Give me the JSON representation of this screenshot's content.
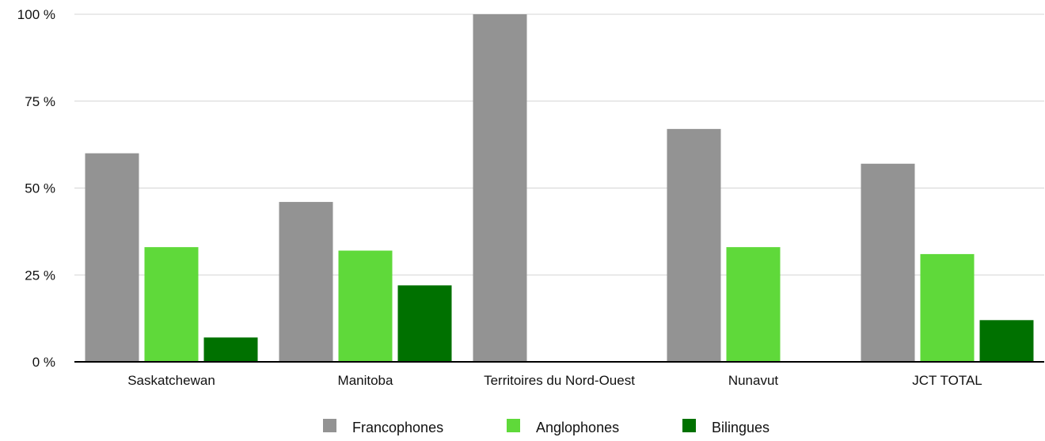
{
  "chart_data": {
    "type": "bar",
    "categories": [
      "Saskatchewan",
      "Manitoba",
      "Territoires du Nord-Ouest",
      "Nunavut",
      "JCT TOTAL"
    ],
    "series": [
      {
        "name": "Francophones",
        "color": "#939393",
        "values": [
          60,
          46,
          100,
          67,
          57
        ]
      },
      {
        "name": "Anglophones",
        "color": "#5fd93a",
        "values": [
          33,
          32,
          0,
          33,
          31
        ]
      },
      {
        "name": "Bilingues",
        "color": "#007100",
        "values": [
          7,
          22,
          0,
          0,
          12
        ]
      }
    ],
    "ylim": [
      0,
      100
    ],
    "yticks": [
      0,
      25,
      50,
      75,
      100
    ],
    "ytick_labels": [
      "0 %",
      "25 %",
      "50 %",
      "75 %",
      "100 %"
    ],
    "grid": true,
    "legend_position": "bottom"
  }
}
